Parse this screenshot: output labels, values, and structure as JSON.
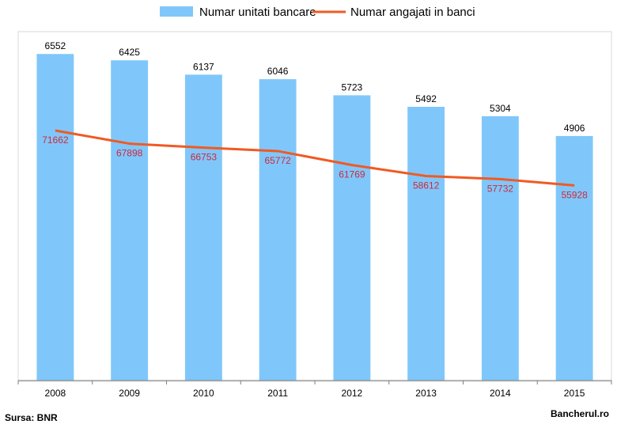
{
  "chart_data": {
    "type": "bar+line",
    "categories": [
      "2008",
      "2009",
      "2010",
      "2011",
      "2012",
      "2013",
      "2014",
      "2015"
    ],
    "series": [
      {
        "name": "Numar unitati bancare",
        "type": "bar",
        "color": "#7fc7fa",
        "values": [
          6552,
          6425,
          6137,
          6046,
          5723,
          5492,
          5304,
          4906
        ]
      },
      {
        "name": "Numar angajati in banci",
        "type": "line",
        "color": "#f05a23",
        "label_color": "#d0283c",
        "values": [
          71662,
          67898,
          66753,
          65772,
          61769,
          58612,
          57732,
          55928
        ]
      }
    ],
    "ylim_bars": [
      0,
      7000
    ],
    "ylim_line": [
      0,
      100000
    ],
    "legend_position": "top",
    "grid": false
  },
  "footer": {
    "source": "Sursa: BNR",
    "brand": "Bancherul.ro"
  }
}
